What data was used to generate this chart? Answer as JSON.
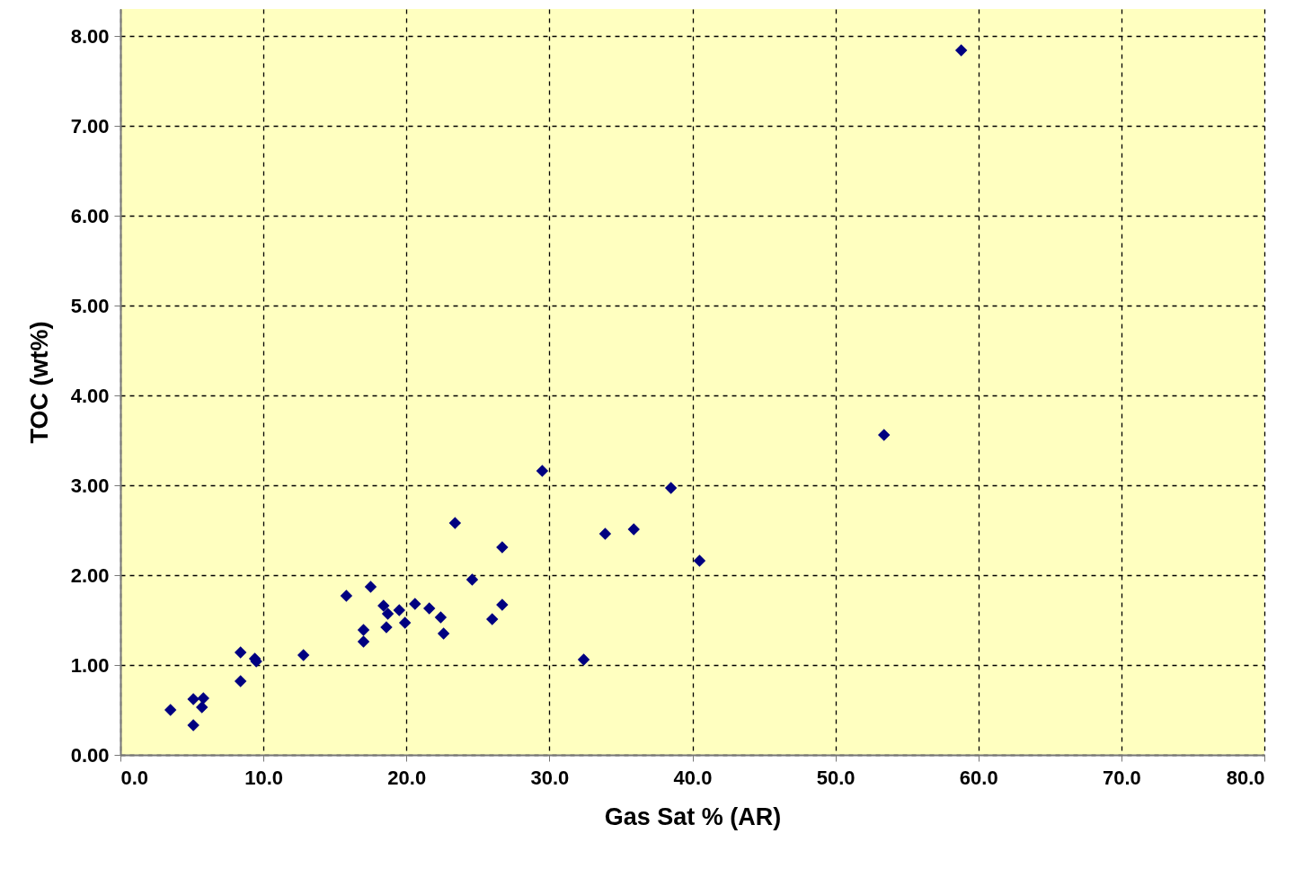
{
  "chart_data": {
    "type": "scatter",
    "xlabel": "Gas Sat % (AR)",
    "ylabel": "TOC (wt%)",
    "x": [
      3.5,
      5.1,
      5.1,
      5.8,
      5.7,
      8.4,
      8.4,
      9.4,
      9.5,
      12.8,
      15.8,
      17.5,
      17.0,
      17.0,
      18.4,
      18.7,
      18.6,
      19.5,
      19.9,
      20.6,
      21.6,
      22.4,
      22.6,
      23.4,
      24.6,
      26.0,
      26.7,
      26.7,
      29.5,
      32.4,
      33.9,
      35.9,
      38.5,
      40.5,
      53.4,
      58.8
    ],
    "series": [
      {
        "color": "#000080",
        "values": [
          0.5,
          0.33,
          0.62,
          0.63,
          0.53,
          0.82,
          1.14,
          1.07,
          1.04,
          1.11,
          1.77,
          1.87,
          1.39,
          1.26,
          1.66,
          1.57,
          1.42,
          1.61,
          1.47,
          1.68,
          1.63,
          1.53,
          1.35,
          2.58,
          1.95,
          1.51,
          1.67,
          2.31,
          3.16,
          1.06,
          2.46,
          2.51,
          2.97,
          2.16,
          3.56,
          7.84
        ]
      }
    ],
    "xlim": [
      0,
      80
    ],
    "ylim": [
      0,
      8.3
    ],
    "xticks": [
      {
        "value": 0,
        "label": "0.0"
      },
      {
        "value": 10,
        "label": "10.0"
      },
      {
        "value": 20,
        "label": "20.0"
      },
      {
        "value": 30,
        "label": "30.0"
      },
      {
        "value": 40,
        "label": "40.0"
      },
      {
        "value": 50,
        "label": "50.0"
      },
      {
        "value": 60,
        "label": "60.0"
      },
      {
        "value": 70,
        "label": "70.0"
      },
      {
        "value": 80,
        "label": "80.0"
      }
    ],
    "yticks": [
      {
        "value": 0,
        "label": "0.00"
      },
      {
        "value": 1,
        "label": "1.00"
      },
      {
        "value": 2,
        "label": "2.00"
      },
      {
        "value": 3,
        "label": "3.00"
      },
      {
        "value": 4,
        "label": "4.00"
      },
      {
        "value": 5,
        "label": "5.00"
      },
      {
        "value": 6,
        "label": "6.00"
      },
      {
        "value": 7,
        "label": "7.00"
      },
      {
        "value": 8,
        "label": "8.00"
      }
    ],
    "grid": true,
    "marker": "diamond"
  }
}
